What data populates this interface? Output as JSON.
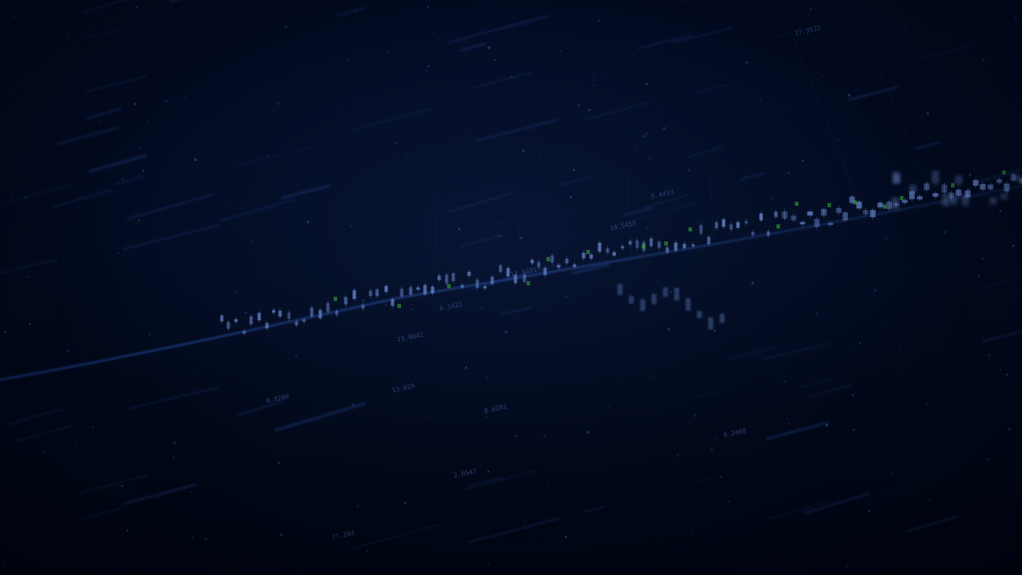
{
  "scene": {
    "description_colors": {
      "background": "#010615",
      "accent_blue": "#3a6bd0",
      "accent_green": "#3bb33b",
      "candle": "#6f8fd8"
    }
  },
  "labels": [
    "5.4433",
    "11.6691",
    "73.9842",
    "10.5455",
    "17.3522",
    "13.029",
    "0.1422",
    "8.6281",
    "2.6547",
    "77.284",
    "0.8200",
    "0.2400"
  ]
}
